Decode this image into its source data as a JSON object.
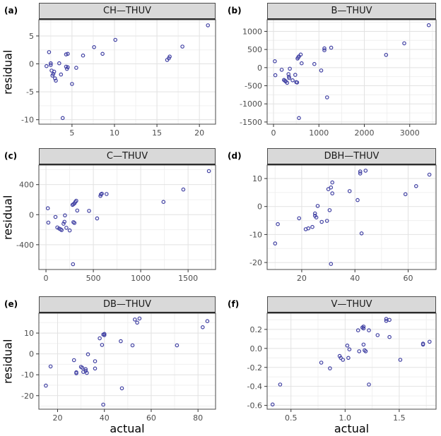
{
  "chart_data": {
    "type": "scatter",
    "xlabel": "actual",
    "ylabel": "residual",
    "legend": "none",
    "grid": "on",
    "colors": {
      "point": "#4141a3",
      "strip_bg": "#d9d9d9",
      "panel_border": "#4a4a4a",
      "grid_major": "#e2e2e2",
      "grid_minor": "#f0f0f0",
      "tick_text": "#4d4d4d"
    },
    "panels": [
      {
        "panel_label": "(a)",
        "title": "CH—THUV",
        "xlim": [
          1.1,
          21.9
        ],
        "ylim": [
          -10.8,
          7.9
        ],
        "xticks": [
          5,
          10,
          15,
          20
        ],
        "xtick_labels": [
          "5",
          "10",
          "15",
          "20"
        ],
        "yticks": [
          -10,
          -5,
          0,
          5
        ],
        "ytick_labels": [
          "-10",
          "-5",
          "0",
          "5"
        ],
        "points": [
          [
            2.0,
            -0.4
          ],
          [
            2.3,
            2.1
          ],
          [
            2.5,
            0.1
          ],
          [
            2.5,
            -0.2
          ],
          [
            2.6,
            -1.2
          ],
          [
            2.7,
            -2.1
          ],
          [
            2.8,
            -1.8
          ],
          [
            2.9,
            -1.4
          ],
          [
            3.0,
            -2.6
          ],
          [
            3.1,
            -3.0
          ],
          [
            3.5,
            0.1
          ],
          [
            3.7,
            -1.9
          ],
          [
            3.9,
            -9.7
          ],
          [
            4.3,
            1.7
          ],
          [
            4.5,
            1.8
          ],
          [
            4.3,
            -0.5
          ],
          [
            4.5,
            -0.6
          ],
          [
            4.4,
            -0.9
          ],
          [
            5.0,
            -3.6
          ],
          [
            5.5,
            -0.7
          ],
          [
            6.3,
            1.5
          ],
          [
            7.6,
            3.0
          ],
          [
            8.6,
            1.8
          ],
          [
            10.1,
            4.3
          ],
          [
            16.2,
            0.7
          ],
          [
            16.4,
            1.0
          ],
          [
            16.5,
            1.3
          ],
          [
            18.0,
            3.1
          ],
          [
            21.0,
            6.9
          ]
        ]
      },
      {
        "panel_label": "(b)",
        "title": "B—THUV",
        "xlim": [
          -140,
          3580
        ],
        "ylim": [
          -1560,
          1320
        ],
        "xticks": [
          0,
          1000,
          2000,
          3000
        ],
        "xtick_labels": [
          "0",
          "1000",
          "2000",
          "3000"
        ],
        "yticks": [
          -1500,
          -1000,
          -500,
          0,
          500,
          1000
        ],
        "ytick_labels": [
          "-1500",
          "-1000",
          "-500",
          "0",
          "500",
          "1000"
        ],
        "points": [
          [
            30,
            175
          ],
          [
            40,
            -210
          ],
          [
            180,
            -60
          ],
          [
            230,
            -340
          ],
          [
            250,
            -360
          ],
          [
            270,
            -380
          ],
          [
            300,
            -420
          ],
          [
            330,
            -180
          ],
          [
            340,
            -250
          ],
          [
            345,
            -290
          ],
          [
            360,
            -30
          ],
          [
            420,
            -350
          ],
          [
            480,
            -200
          ],
          [
            500,
            -400
          ],
          [
            520,
            -410
          ],
          [
            530,
            250
          ],
          [
            545,
            280
          ],
          [
            560,
            310
          ],
          [
            560,
            -1390
          ],
          [
            600,
            360
          ],
          [
            620,
            120
          ],
          [
            900,
            100
          ],
          [
            1050,
            -80
          ],
          [
            1120,
            480
          ],
          [
            1120,
            530
          ],
          [
            1270,
            550
          ],
          [
            1180,
            -820
          ],
          [
            2480,
            350
          ],
          [
            2880,
            670
          ],
          [
            3420,
            1170
          ]
        ]
      },
      {
        "panel_label": "(c)",
        "title": "C—THUV",
        "xlim": [
          -75,
          1790
        ],
        "ylim": [
          -730,
          660
        ],
        "xticks": [
          0,
          500,
          1000,
          1500
        ],
        "xtick_labels": [
          "0",
          "500",
          "1000",
          "1500"
        ],
        "yticks": [
          -400,
          0,
          400
        ],
        "ytick_labels": [
          "-400",
          "0",
          "400"
        ],
        "points": [
          [
            20,
            85
          ],
          [
            25,
            -105
          ],
          [
            100,
            -30
          ],
          [
            120,
            -170
          ],
          [
            140,
            -185
          ],
          [
            155,
            -195
          ],
          [
            165,
            -205
          ],
          [
            185,
            -120
          ],
          [
            195,
            -95
          ],
          [
            200,
            -10
          ],
          [
            215,
            -175
          ],
          [
            250,
            -210
          ],
          [
            280,
            130
          ],
          [
            290,
            140
          ],
          [
            300,
            150
          ],
          [
            310,
            170
          ],
          [
            320,
            185
          ],
          [
            330,
            55
          ],
          [
            290,
            -100
          ],
          [
            300,
            -110
          ],
          [
            285,
            -660
          ],
          [
            455,
            50
          ],
          [
            540,
            -50
          ],
          [
            575,
            250
          ],
          [
            580,
            270
          ],
          [
            590,
            280
          ],
          [
            640,
            275
          ],
          [
            1240,
            170
          ],
          [
            1450,
            335
          ],
          [
            1720,
            580
          ]
        ]
      },
      {
        "panel_label": "(d)",
        "title": "DBH—THUV",
        "xlim": [
          7,
          70.5
        ],
        "ylim": [
          -22.5,
          14.8
        ],
        "xticks": [
          20,
          40,
          60
        ],
        "xtick_labels": [
          "20",
          "40",
          "60"
        ],
        "yticks": [
          -20,
          -10,
          0,
          10
        ],
        "ytick_labels": [
          "-20",
          "-10",
          "0",
          "10"
        ],
        "points": [
          [
            10,
            -13.2
          ],
          [
            11,
            -6.3
          ],
          [
            19,
            -4.2
          ],
          [
            21.5,
            -8.1
          ],
          [
            22.5,
            -7.8
          ],
          [
            24,
            -7.3
          ],
          [
            25,
            -2.5
          ],
          [
            25,
            -3.3
          ],
          [
            25.5,
            -3.9
          ],
          [
            26,
            0.2
          ],
          [
            27.5,
            -5.5
          ],
          [
            29.5,
            -5.1
          ],
          [
            30,
            6.2
          ],
          [
            31,
            6.8
          ],
          [
            30.5,
            -1.3
          ],
          [
            31.5,
            8.6
          ],
          [
            31.5,
            4.7
          ],
          [
            31,
            -20.5
          ],
          [
            38,
            5.5
          ],
          [
            41,
            2.3
          ],
          [
            42,
            11.8
          ],
          [
            42,
            12.5
          ],
          [
            44,
            12.8
          ],
          [
            42.5,
            -9.6
          ],
          [
            59,
            4.4
          ],
          [
            63,
            7.3
          ],
          [
            68,
            11.4
          ]
        ]
      },
      {
        "panel_label": "(e)",
        "title": "DB—THUV",
        "xlim": [
          12,
          87.5
        ],
        "ylim": [
          -26.5,
          19.5
        ],
        "xticks": [
          20,
          40,
          60,
          80
        ],
        "xtick_labels": [
          "20",
          "40",
          "60",
          "80"
        ],
        "yticks": [
          -20,
          -10,
          0,
          10
        ],
        "ytick_labels": [
          "-20",
          "-10",
          "0",
          "10"
        ],
        "points": [
          [
            15,
            -15.2
          ],
          [
            17,
            -6.0
          ],
          [
            27,
            -3.0
          ],
          [
            28,
            -8.8
          ],
          [
            28,
            -9.3
          ],
          [
            30,
            -6.2
          ],
          [
            30.5,
            -6.6
          ],
          [
            31,
            -8.6
          ],
          [
            32,
            -7.3
          ],
          [
            32,
            -8.1
          ],
          [
            32.5,
            -9.1
          ],
          [
            33,
            -0.2
          ],
          [
            36,
            -3.5
          ],
          [
            36,
            -7.0
          ],
          [
            38,
            7.5
          ],
          [
            39,
            4.3
          ],
          [
            39.5,
            9.3
          ],
          [
            40,
            9.6
          ],
          [
            40,
            9.0
          ],
          [
            39.5,
            -24.3
          ],
          [
            47,
            6.1
          ],
          [
            47.5,
            -16.5
          ],
          [
            52,
            4.1
          ],
          [
            53,
            16.5
          ],
          [
            54,
            15.0
          ],
          [
            55,
            17.0
          ],
          [
            71,
            4.1
          ],
          [
            82,
            12.8
          ],
          [
            84,
            15.7
          ]
        ]
      },
      {
        "panel_label": "(f)",
        "title": "V—THUV",
        "xlim": [
          0.28,
          1.84
        ],
        "ylim": [
          -0.64,
          0.37
        ],
        "xticks": [
          0.5,
          1.0,
          1.5
        ],
        "xtick_labels": [
          "0.5",
          "1.0",
          "1.5"
        ],
        "yticks": [
          -0.6,
          -0.4,
          -0.2,
          0.0,
          0.2
        ],
        "ytick_labels": [
          "-0.6",
          "-0.4",
          "-0.2",
          "0.0",
          "0.2"
        ],
        "points": [
          [
            0.33,
            -0.59
          ],
          [
            0.4,
            -0.38
          ],
          [
            0.78,
            -0.15
          ],
          [
            0.86,
            -0.21
          ],
          [
            0.95,
            -0.08
          ],
          [
            0.96,
            -0.1
          ],
          [
            0.98,
            -0.12
          ],
          [
            1.02,
            0.03
          ],
          [
            1.03,
            -0.1
          ],
          [
            1.04,
            -0.01
          ],
          [
            1.12,
            0.19
          ],
          [
            1.13,
            -0.03
          ],
          [
            1.16,
            0.22
          ],
          [
            1.17,
            0.23
          ],
          [
            1.17,
            0.21
          ],
          [
            1.17,
            0.04
          ],
          [
            1.18,
            -0.02
          ],
          [
            1.19,
            -0.03
          ],
          [
            1.22,
            0.19
          ],
          [
            1.22,
            -0.38
          ],
          [
            1.3,
            0.14
          ],
          [
            1.38,
            0.29
          ],
          [
            1.38,
            0.31
          ],
          [
            1.41,
            0.3
          ],
          [
            1.41,
            0.12
          ],
          [
            1.51,
            -0.12
          ],
          [
            1.72,
            0.04
          ],
          [
            1.72,
            0.05
          ],
          [
            1.78,
            0.07
          ]
        ]
      }
    ]
  }
}
